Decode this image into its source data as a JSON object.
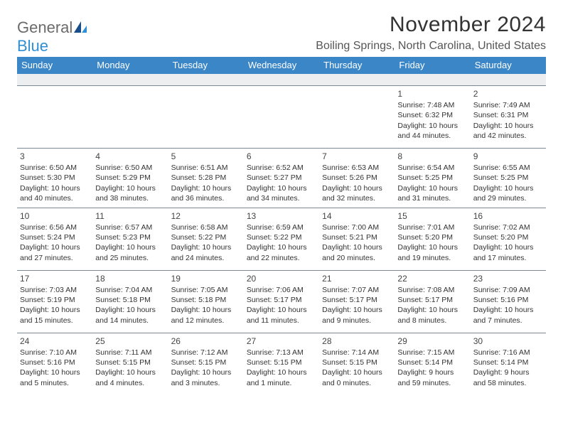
{
  "brand": {
    "part1": "General",
    "part2": "Blue"
  },
  "title": "November 2024",
  "location": "Boiling Springs, North Carolina, United States",
  "colors": {
    "header_bg": "#3b86c6",
    "header_text": "#ffffff",
    "blank_bg": "#eceef0",
    "border": "#7b8894",
    "text": "#333333",
    "brand_gray": "#6b6b6b",
    "brand_blue": "#2f8fd4"
  },
  "day_names": [
    "Sunday",
    "Monday",
    "Tuesday",
    "Wednesday",
    "Thursday",
    "Friday",
    "Saturday"
  ],
  "weeks": [
    [
      {
        "blank": true
      },
      {
        "blank": true
      },
      {
        "blank": true
      },
      {
        "blank": true
      },
      {
        "blank": true
      },
      {
        "day": "1",
        "sunrise": "Sunrise: 7:48 AM",
        "sunset": "Sunset: 6:32 PM",
        "daylight": "Daylight: 10 hours and 44 minutes."
      },
      {
        "day": "2",
        "sunrise": "Sunrise: 7:49 AM",
        "sunset": "Sunset: 6:31 PM",
        "daylight": "Daylight: 10 hours and 42 minutes."
      }
    ],
    [
      {
        "day": "3",
        "sunrise": "Sunrise: 6:50 AM",
        "sunset": "Sunset: 5:30 PM",
        "daylight": "Daylight: 10 hours and 40 minutes."
      },
      {
        "day": "4",
        "sunrise": "Sunrise: 6:50 AM",
        "sunset": "Sunset: 5:29 PM",
        "daylight": "Daylight: 10 hours and 38 minutes."
      },
      {
        "day": "5",
        "sunrise": "Sunrise: 6:51 AM",
        "sunset": "Sunset: 5:28 PM",
        "daylight": "Daylight: 10 hours and 36 minutes."
      },
      {
        "day": "6",
        "sunrise": "Sunrise: 6:52 AM",
        "sunset": "Sunset: 5:27 PM",
        "daylight": "Daylight: 10 hours and 34 minutes."
      },
      {
        "day": "7",
        "sunrise": "Sunrise: 6:53 AM",
        "sunset": "Sunset: 5:26 PM",
        "daylight": "Daylight: 10 hours and 32 minutes."
      },
      {
        "day": "8",
        "sunrise": "Sunrise: 6:54 AM",
        "sunset": "Sunset: 5:25 PM",
        "daylight": "Daylight: 10 hours and 31 minutes."
      },
      {
        "day": "9",
        "sunrise": "Sunrise: 6:55 AM",
        "sunset": "Sunset: 5:25 PM",
        "daylight": "Daylight: 10 hours and 29 minutes."
      }
    ],
    [
      {
        "day": "10",
        "sunrise": "Sunrise: 6:56 AM",
        "sunset": "Sunset: 5:24 PM",
        "daylight": "Daylight: 10 hours and 27 minutes."
      },
      {
        "day": "11",
        "sunrise": "Sunrise: 6:57 AM",
        "sunset": "Sunset: 5:23 PM",
        "daylight": "Daylight: 10 hours and 25 minutes."
      },
      {
        "day": "12",
        "sunrise": "Sunrise: 6:58 AM",
        "sunset": "Sunset: 5:22 PM",
        "daylight": "Daylight: 10 hours and 24 minutes."
      },
      {
        "day": "13",
        "sunrise": "Sunrise: 6:59 AM",
        "sunset": "Sunset: 5:22 PM",
        "daylight": "Daylight: 10 hours and 22 minutes."
      },
      {
        "day": "14",
        "sunrise": "Sunrise: 7:00 AM",
        "sunset": "Sunset: 5:21 PM",
        "daylight": "Daylight: 10 hours and 20 minutes."
      },
      {
        "day": "15",
        "sunrise": "Sunrise: 7:01 AM",
        "sunset": "Sunset: 5:20 PM",
        "daylight": "Daylight: 10 hours and 19 minutes."
      },
      {
        "day": "16",
        "sunrise": "Sunrise: 7:02 AM",
        "sunset": "Sunset: 5:20 PM",
        "daylight": "Daylight: 10 hours and 17 minutes."
      }
    ],
    [
      {
        "day": "17",
        "sunrise": "Sunrise: 7:03 AM",
        "sunset": "Sunset: 5:19 PM",
        "daylight": "Daylight: 10 hours and 15 minutes."
      },
      {
        "day": "18",
        "sunrise": "Sunrise: 7:04 AM",
        "sunset": "Sunset: 5:18 PM",
        "daylight": "Daylight: 10 hours and 14 minutes."
      },
      {
        "day": "19",
        "sunrise": "Sunrise: 7:05 AM",
        "sunset": "Sunset: 5:18 PM",
        "daylight": "Daylight: 10 hours and 12 minutes."
      },
      {
        "day": "20",
        "sunrise": "Sunrise: 7:06 AM",
        "sunset": "Sunset: 5:17 PM",
        "daylight": "Daylight: 10 hours and 11 minutes."
      },
      {
        "day": "21",
        "sunrise": "Sunrise: 7:07 AM",
        "sunset": "Sunset: 5:17 PM",
        "daylight": "Daylight: 10 hours and 9 minutes."
      },
      {
        "day": "22",
        "sunrise": "Sunrise: 7:08 AM",
        "sunset": "Sunset: 5:17 PM",
        "daylight": "Daylight: 10 hours and 8 minutes."
      },
      {
        "day": "23",
        "sunrise": "Sunrise: 7:09 AM",
        "sunset": "Sunset: 5:16 PM",
        "daylight": "Daylight: 10 hours and 7 minutes."
      }
    ],
    [
      {
        "day": "24",
        "sunrise": "Sunrise: 7:10 AM",
        "sunset": "Sunset: 5:16 PM",
        "daylight": "Daylight: 10 hours and 5 minutes."
      },
      {
        "day": "25",
        "sunrise": "Sunrise: 7:11 AM",
        "sunset": "Sunset: 5:15 PM",
        "daylight": "Daylight: 10 hours and 4 minutes."
      },
      {
        "day": "26",
        "sunrise": "Sunrise: 7:12 AM",
        "sunset": "Sunset: 5:15 PM",
        "daylight": "Daylight: 10 hours and 3 minutes."
      },
      {
        "day": "27",
        "sunrise": "Sunrise: 7:13 AM",
        "sunset": "Sunset: 5:15 PM",
        "daylight": "Daylight: 10 hours and 1 minute."
      },
      {
        "day": "28",
        "sunrise": "Sunrise: 7:14 AM",
        "sunset": "Sunset: 5:15 PM",
        "daylight": "Daylight: 10 hours and 0 minutes."
      },
      {
        "day": "29",
        "sunrise": "Sunrise: 7:15 AM",
        "sunset": "Sunset: 5:14 PM",
        "daylight": "Daylight: 9 hours and 59 minutes."
      },
      {
        "day": "30",
        "sunrise": "Sunrise: 7:16 AM",
        "sunset": "Sunset: 5:14 PM",
        "daylight": "Daylight: 9 hours and 58 minutes."
      }
    ]
  ]
}
